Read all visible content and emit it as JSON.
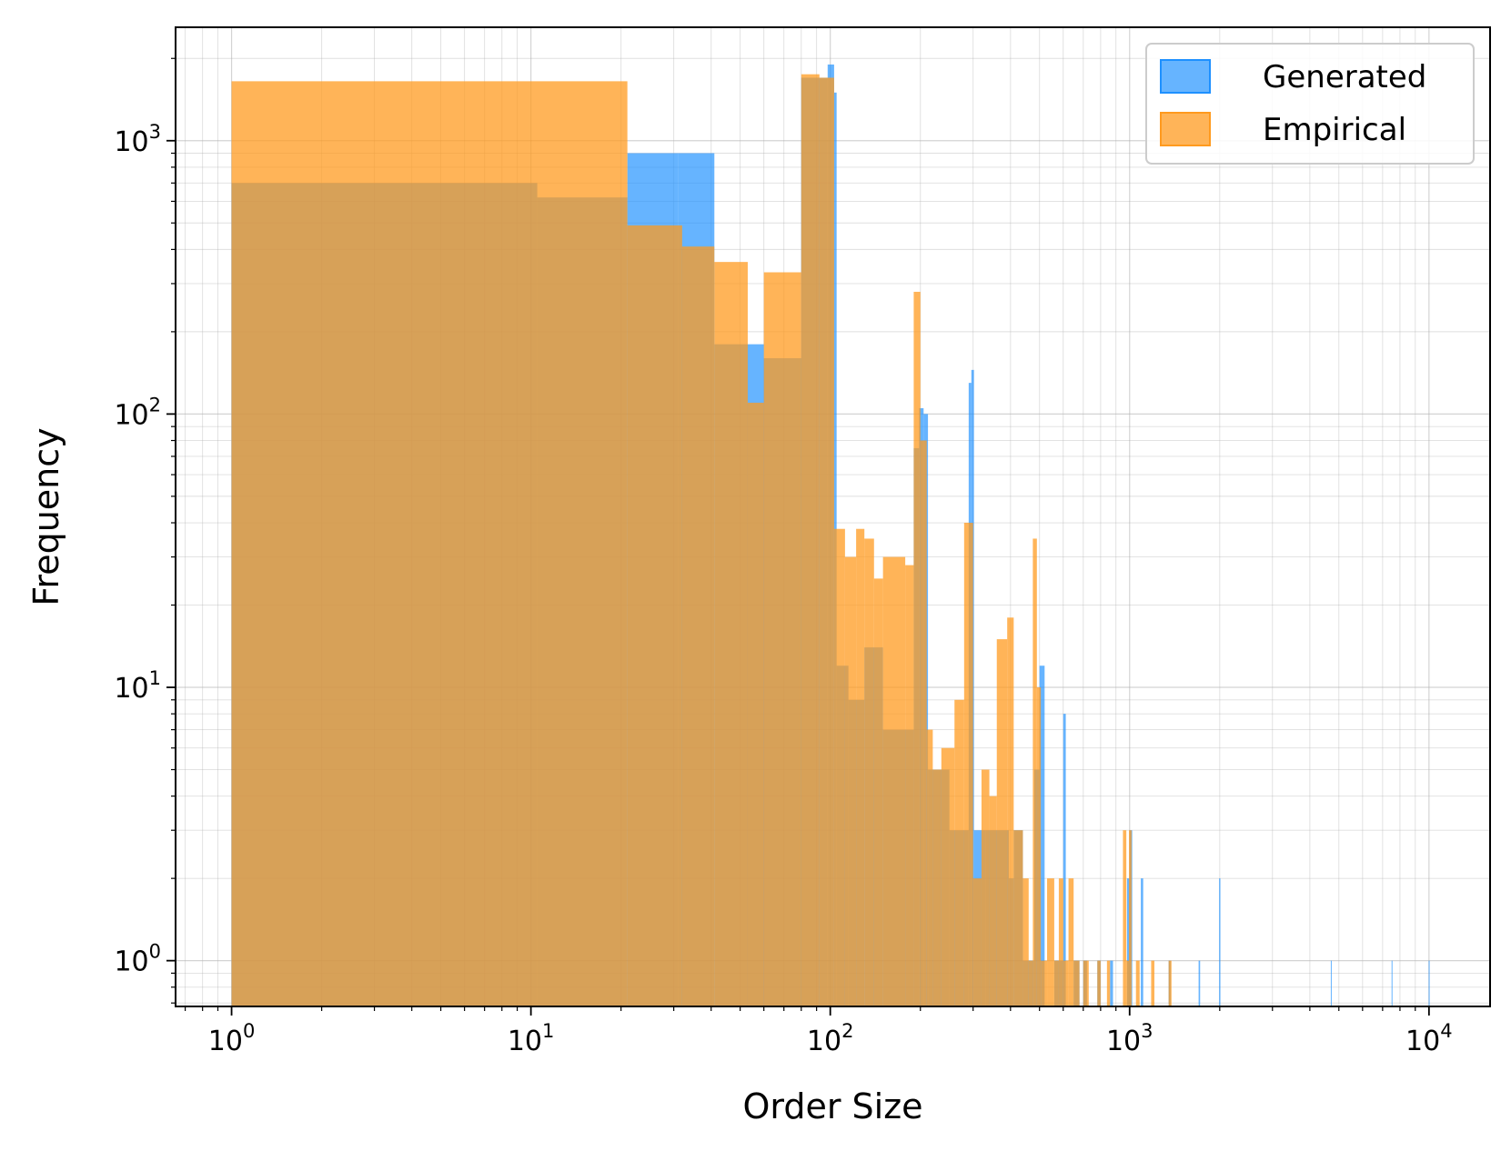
{
  "chart_data": {
    "type": "histogram",
    "xlabel": "Order Size",
    "ylabel": "Frequency",
    "xscale": "log",
    "yscale": "log",
    "xlim": [
      0.65,
      16000
    ],
    "ylim": [
      0.68,
      2600
    ],
    "grid": true,
    "legend_position": "top-right",
    "x_ticks": [
      {
        "value": 1,
        "base": "10",
        "exp": "0"
      },
      {
        "value": 10,
        "base": "10",
        "exp": "1"
      },
      {
        "value": 100,
        "base": "10",
        "exp": "2"
      },
      {
        "value": 1000,
        "base": "10",
        "exp": "3"
      },
      {
        "value": 10000,
        "base": "10",
        "exp": "4"
      }
    ],
    "y_ticks": [
      {
        "value": 1,
        "base": "10",
        "exp": "0"
      },
      {
        "value": 10,
        "base": "10",
        "exp": "1"
      },
      {
        "value": 100,
        "base": "10",
        "exp": "2"
      },
      {
        "value": 1000,
        "base": "10",
        "exp": "3"
      }
    ],
    "series": [
      {
        "name": "Generated",
        "color": "#1e90ff",
        "opacity": 0.68,
        "bins": [
          [
            1,
            10.5,
            700
          ],
          [
            10.5,
            21,
            620
          ],
          [
            21,
            31,
            900
          ],
          [
            31,
            41,
            900
          ],
          [
            41,
            60,
            180
          ],
          [
            60,
            80,
            160
          ],
          [
            80,
            98,
            1700
          ],
          [
            98,
            103,
            1900
          ],
          [
            103,
            105,
            1500
          ],
          [
            105,
            115,
            12
          ],
          [
            115,
            130,
            9
          ],
          [
            130,
            150,
            14
          ],
          [
            150,
            190,
            7
          ],
          [
            190,
            198,
            75
          ],
          [
            198,
            205,
            105
          ],
          [
            205,
            212,
            100
          ],
          [
            212,
            250,
            5
          ],
          [
            250,
            290,
            3
          ],
          [
            290,
            296,
            130
          ],
          [
            296,
            302,
            145
          ],
          [
            302,
            330,
            3
          ],
          [
            330,
            395,
            3
          ],
          [
            395,
            410,
            2
          ],
          [
            410,
            440,
            3
          ],
          [
            440,
            480,
            1
          ],
          [
            480,
            500,
            5
          ],
          [
            500,
            520,
            12
          ],
          [
            560,
            600,
            1
          ],
          [
            600,
            612,
            8
          ],
          [
            650,
            680,
            1
          ],
          [
            700,
            720,
            1
          ],
          [
            780,
            800,
            1
          ],
          [
            860,
            880,
            1
          ],
          [
            980,
            1000,
            2
          ],
          [
            1000,
            1020,
            3
          ],
          [
            1090,
            1110,
            2
          ],
          [
            1350,
            1370,
            1
          ],
          [
            1700,
            1720,
            1
          ],
          [
            1990,
            2010,
            2
          ],
          [
            4700,
            4720,
            1
          ],
          [
            7500,
            7530,
            1
          ],
          [
            9980,
            10020,
            1
          ]
        ]
      },
      {
        "name": "Empirical",
        "color": "#ff9a1e",
        "opacity": 0.74,
        "bins": [
          [
            1,
            21,
            1650
          ],
          [
            21,
            32,
            490
          ],
          [
            32,
            41,
            410
          ],
          [
            41,
            53,
            360
          ],
          [
            53,
            60,
            110
          ],
          [
            60,
            80,
            330
          ],
          [
            80,
            92,
            1750
          ],
          [
            92,
            103,
            1700
          ],
          [
            103,
            112,
            38
          ],
          [
            112,
            122,
            30
          ],
          [
            122,
            130,
            38
          ],
          [
            130,
            140,
            35
          ],
          [
            140,
            150,
            25
          ],
          [
            150,
            178,
            30
          ],
          [
            178,
            190,
            28
          ],
          [
            190,
            200,
            280
          ],
          [
            200,
            210,
            80
          ],
          [
            210,
            220,
            7
          ],
          [
            220,
            235,
            5
          ],
          [
            235,
            260,
            6
          ],
          [
            260,
            280,
            9
          ],
          [
            280,
            300,
            40
          ],
          [
            300,
            320,
            2
          ],
          [
            320,
            340,
            5
          ],
          [
            340,
            360,
            4
          ],
          [
            360,
            390,
            15
          ],
          [
            390,
            410,
            18
          ],
          [
            410,
            440,
            3
          ],
          [
            440,
            460,
            2
          ],
          [
            460,
            475,
            1
          ],
          [
            475,
            490,
            35
          ],
          [
            490,
            505,
            10
          ],
          [
            505,
            530,
            1
          ],
          [
            530,
            560,
            2
          ],
          [
            560,
            580,
            1
          ],
          [
            580,
            600,
            2
          ],
          [
            600,
            625,
            1
          ],
          [
            625,
            650,
            2
          ],
          [
            650,
            680,
            1
          ],
          [
            700,
            730,
            1
          ],
          [
            780,
            800,
            1
          ],
          [
            840,
            860,
            1
          ],
          [
            950,
            975,
            3
          ],
          [
            975,
            995,
            1
          ],
          [
            995,
            1015,
            3
          ],
          [
            1050,
            1080,
            1
          ],
          [
            1180,
            1210,
            1
          ],
          [
            1350,
            1380,
            1
          ]
        ]
      }
    ]
  }
}
